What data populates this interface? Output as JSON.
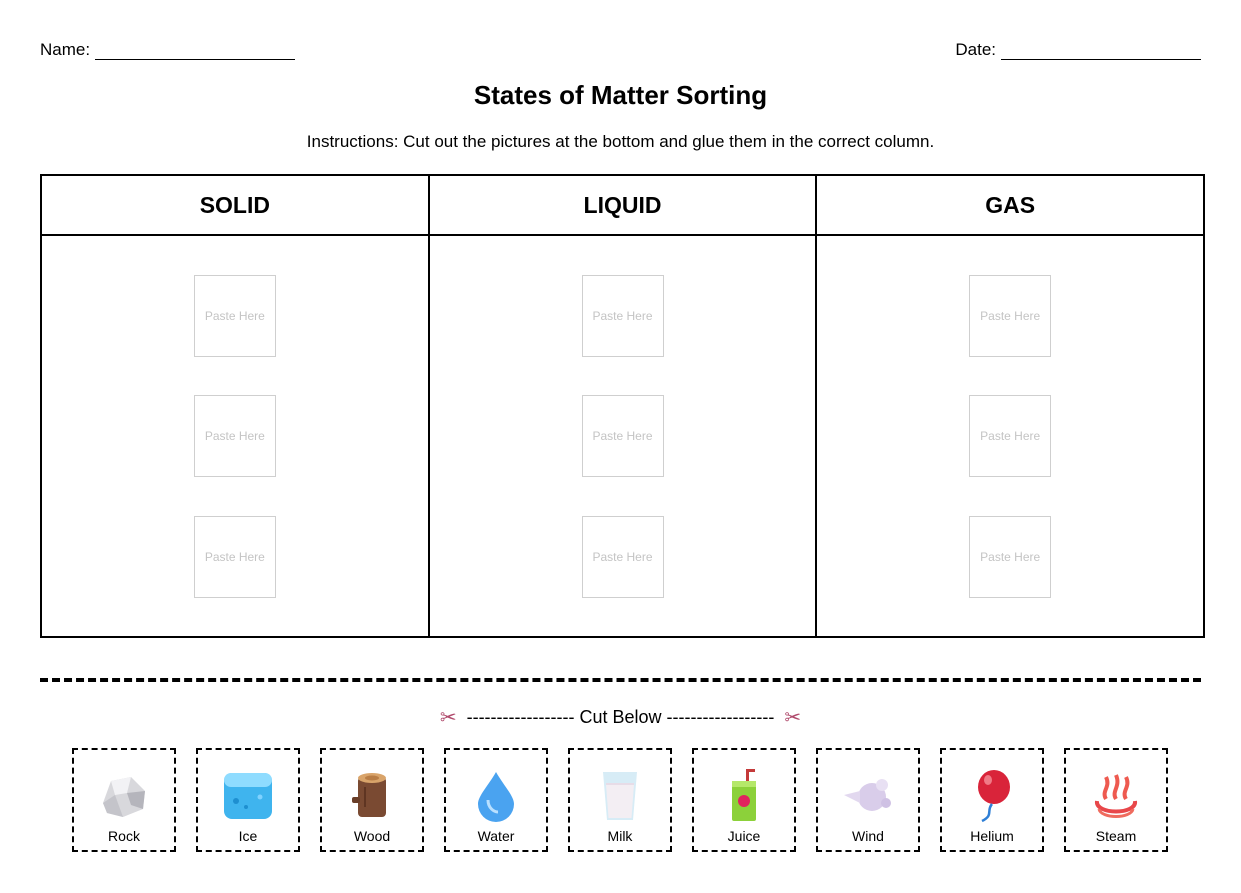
{
  "header": {
    "name_label": "Name:",
    "date_label": "Date:"
  },
  "title": "States of Matter Sorting",
  "instructions": "Instructions: Cut out the pictures at the bottom and glue them in the correct column.",
  "columns": [
    {
      "label": "SOLID"
    },
    {
      "label": "LIQUID"
    },
    {
      "label": "GAS"
    }
  ],
  "slot_label": "Paste Here",
  "cut": {
    "label": "------------------ Cut Below ------------------",
    "icon": "scissors-icon"
  },
  "cards": [
    {
      "label": "Rock",
      "icon": "rock-icon"
    },
    {
      "label": "Ice",
      "icon": "ice-cube-icon"
    },
    {
      "label": "Wood",
      "icon": "wood-log-icon"
    },
    {
      "label": "Water",
      "icon": "water-drop-icon"
    },
    {
      "label": "Milk",
      "icon": "milk-glass-icon"
    },
    {
      "label": "Juice",
      "icon": "juice-box-icon"
    },
    {
      "label": "Wind",
      "icon": "wind-icon"
    },
    {
      "label": "Helium",
      "icon": "balloon-icon"
    },
    {
      "label": "Steam",
      "icon": "steam-icon"
    }
  ]
}
